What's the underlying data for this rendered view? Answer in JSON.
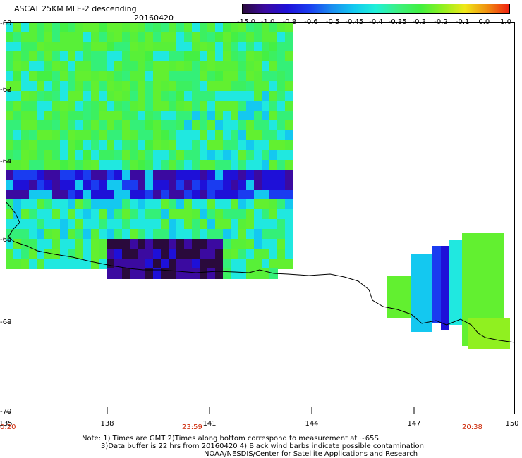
{
  "header": {
    "title": "ASCAT 25KM MLE-2 descending",
    "date": "20160420"
  },
  "colorbar": {
    "labels": [
      "-15.0",
      "-1.0",
      "-0.8",
      "-0.6",
      "-0.5",
      "-0.45",
      "-0.4",
      "-0.35",
      "-0.3",
      "-0.2",
      "-0.1",
      "0.0",
      "1.0"
    ],
    "colors": [
      "#2a0a3c",
      "#3b0aa0",
      "#1e10d8",
      "#1a3cf0",
      "#1a8cf0",
      "#12c8f0",
      "#20f0d8",
      "#3cf080",
      "#40f040",
      "#90f020",
      "#f0e818",
      "#f09010",
      "#f02010"
    ]
  },
  "map": {
    "lat_labels": [
      "-60",
      "-62",
      "-64",
      "-66",
      "-68",
      "-70"
    ],
    "lon_labels": [
      "135",
      "138",
      "141",
      "144",
      "147",
      "150"
    ],
    "lat_range": [
      -70,
      -60
    ],
    "lon_range": [
      135,
      150
    ]
  },
  "times": [
    {
      "label": "0:20",
      "lon": 135
    },
    {
      "label": "23:59",
      "lon": 140.5
    },
    {
      "label": "20:38",
      "lon": 148.6
    }
  ],
  "notes": {
    "line1": "Note: 1) Times are GMT 2)Times along bottom correspond to measurement at ~65S",
    "line2": "3)Data buffer is 22 hrs from 20160420 4) Black wind barbs indicate possible contamination",
    "line3": "NOAA/NESDIS/Center for Satellite Applications and Research"
  }
}
